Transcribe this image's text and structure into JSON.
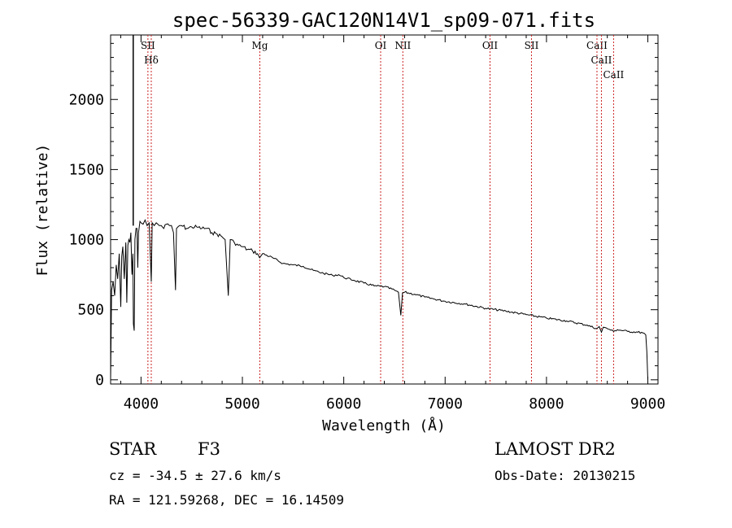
{
  "chart_data": {
    "type": "line",
    "title": "spec-56339-GAC120N14V1_sp09-071.fits",
    "xlabel": "Wavelength (Å)",
    "ylabel": "Flux (relative)",
    "xlim": [
      3700,
      9100
    ],
    "ylim": [
      -30,
      2460
    ],
    "xticks": [
      4000,
      5000,
      6000,
      7000,
      8000,
      9000
    ],
    "yticks": [
      0,
      500,
      1000,
      1500,
      2000
    ],
    "grid": false,
    "series": [
      {
        "x": [
          3700,
          3710,
          3725,
          3740,
          3755,
          3770,
          3785,
          3800,
          3810,
          3820,
          3835,
          3850,
          3860,
          3870,
          3880,
          3890,
          3900,
          3910,
          3920,
          3925,
          3933,
          3940,
          3950,
          3960,
          3968,
          3975,
          3990,
          4000,
          4020,
          4040,
          4060,
          4080,
          4101,
          4110,
          4130,
          4150,
          4180,
          4200,
          4225,
          4250,
          4280,
          4300,
          4320,
          4340,
          4350,
          4380,
          4400,
          4450,
          4500,
          4550,
          4600,
          4650,
          4700,
          4750,
          4800,
          4830,
          4861,
          4880,
          4920,
          4960,
          5000,
          5050,
          5100,
          5150,
          5170,
          5200,
          5300,
          5400,
          5500,
          5600,
          5700,
          5800,
          5890,
          5950,
          6000,
          6100,
          6200,
          6300,
          6400,
          6500,
          6540,
          6563,
          6580,
          6600,
          6700,
          6800,
          6900,
          7000,
          7200,
          7400,
          7600,
          7800,
          8000,
          8200,
          8400,
          8498,
          8520,
          8542,
          8560,
          8620,
          8662,
          8700,
          8800,
          8900,
          8950,
          8980,
          8990,
          9000
        ],
        "y": [
          0,
          640,
          700,
          600,
          820,
          720,
          900,
          520,
          880,
          950,
          720,
          980,
          550,
          960,
          1000,
          980,
          1050,
          750,
          900,
          400,
          350,
          1000,
          1080,
          1080,
          800,
          1050,
          1130,
          1120,
          1110,
          1140,
          1100,
          1120,
          700,
          1120,
          1100,
          1120,
          1100,
          1100,
          1080,
          1110,
          1100,
          1100,
          1050,
          640,
          1080,
          1100,
          1100,
          1080,
          1090,
          1090,
          1080,
          1080,
          1050,
          1040,
          1020,
          1000,
          600,
          1000,
          980,
          960,
          950,
          930,
          920,
          900,
          870,
          900,
          870,
          830,
          820,
          810,
          780,
          760,
          745,
          750,
          730,
          710,
          690,
          670,
          665,
          640,
          625,
          460,
          620,
          625,
          610,
          590,
          575,
          560,
          540,
          510,
          490,
          465,
          440,
          420,
          390,
          365,
          380,
          340,
          375,
          360,
          345,
          358,
          345,
          340,
          335,
          320,
          200,
          0
        ]
      }
    ],
    "spike": {
      "x": 3923,
      "y": 2460
    },
    "lines": [
      {
        "x": 4068,
        "label": "SII"
      },
      {
        "x": 4101,
        "label": "Hδ"
      },
      {
        "x": 5172,
        "label": "Mg"
      },
      {
        "x": 6364,
        "label": "OI"
      },
      {
        "x": 6583,
        "label": "NII"
      },
      {
        "x": 7443,
        "label": "OII"
      },
      {
        "x": 7852,
        "label": "SII"
      },
      {
        "x": 8498,
        "label": "CaII"
      },
      {
        "x": 8542,
        "label": "CaII"
      },
      {
        "x": 8662,
        "label": "CaII"
      }
    ]
  },
  "info": {
    "object_class": "STAR",
    "subclass": "F3",
    "survey": "LAMOST DR2",
    "cz": "cz = -34.5 ± 27.6 km/s",
    "obs_date": "Obs-Date: 20130215",
    "radec": "RA = 121.59268, DEC =  16.14509"
  },
  "colors": {
    "spectrum": "#000000",
    "lines": "#cc2222"
  }
}
